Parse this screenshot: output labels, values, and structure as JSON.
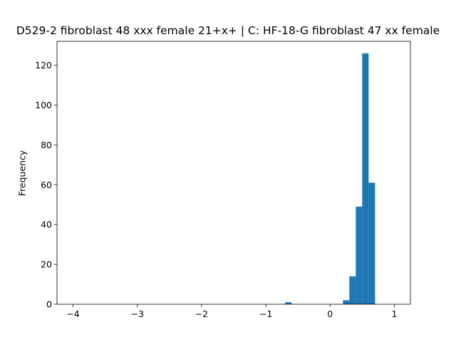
{
  "chart_data": {
    "type": "bar",
    "title": "D529-2 fibroblast 48 xxx female 21+x+ | C: HF-18-G fibroblast 47 xx female",
    "xlabel": "",
    "ylabel": "Frequency",
    "xlim": [
      -4.25,
      1.25
    ],
    "ylim": [
      0,
      132
    ],
    "xticks": [
      -4,
      -3,
      -2,
      -1,
      0,
      1
    ],
    "xtick_labels": [
      "−4",
      "−3",
      "−2",
      "−1",
      "0",
      "1"
    ],
    "yticks": [
      0,
      20,
      40,
      60,
      80,
      100,
      120
    ],
    "ytick_labels": [
      "0",
      "20",
      "40",
      "60",
      "80",
      "100",
      "120"
    ],
    "color": "#1f77b4",
    "bins": [
      {
        "x0": -0.7,
        "x1": -0.6,
        "count": 1
      },
      {
        "x0": 0.2,
        "x1": 0.3,
        "count": 2
      },
      {
        "x0": 0.3,
        "x1": 0.4,
        "count": 14
      },
      {
        "x0": 0.4,
        "x1": 0.5,
        "count": 49
      },
      {
        "x0": 0.5,
        "x1": 0.6,
        "count": 126
      },
      {
        "x0": 0.6,
        "x1": 0.7,
        "count": 61
      }
    ],
    "grid": false,
    "legend": "none"
  }
}
